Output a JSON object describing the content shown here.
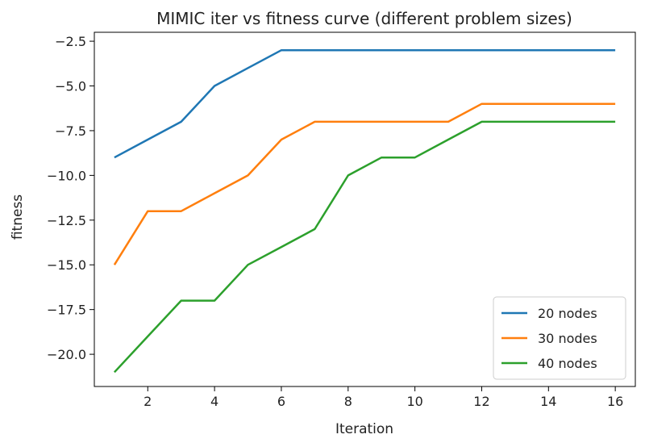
{
  "chart_data": {
    "type": "line",
    "title": "MIMIC iter vs fitness curve (different problem sizes)",
    "xlabel": "Iteration",
    "ylabel": "fitness",
    "xlim": [
      0.4,
      16.6
    ],
    "ylim": [
      -21.8,
      -2.0
    ],
    "xticks": [
      2,
      4,
      6,
      8,
      10,
      12,
      14,
      16
    ],
    "yticks": [
      -2.5,
      -5.0,
      -7.5,
      -10.0,
      -12.5,
      -15.0,
      -17.5,
      -20.0
    ],
    "ytick_labels": [
      "−2.5",
      "−5.0",
      "−7.5",
      "−10.0",
      "−12.5",
      "−15.0",
      "−17.5",
      "−20.0"
    ],
    "grid": false,
    "legend_position": "bottom-right",
    "x": [
      1,
      2,
      3,
      4,
      5,
      6,
      7,
      8,
      9,
      10,
      11,
      12,
      13,
      14,
      15,
      16
    ],
    "series": [
      {
        "name": "20 nodes",
        "color": "#1f77b4",
        "values": [
          -9,
          -8,
          -7,
          -5,
          -4,
          -3,
          -3,
          -3,
          -3,
          -3,
          -3,
          -3,
          -3,
          -3,
          -3,
          -3
        ]
      },
      {
        "name": "30 nodes",
        "color": "#ff7f0e",
        "values": [
          -15,
          -12,
          -12,
          -11,
          -10,
          -8,
          -7,
          -7,
          -7,
          -7,
          -7,
          -6,
          -6,
          -6,
          -6,
          -6
        ]
      },
      {
        "name": "40 nodes",
        "color": "#2ca02c",
        "values": [
          -21,
          -19,
          -17,
          -17,
          -15,
          -14,
          -13,
          -10,
          -9,
          -9,
          -8,
          -7,
          -7,
          -7,
          -7,
          -7
        ]
      }
    ]
  }
}
